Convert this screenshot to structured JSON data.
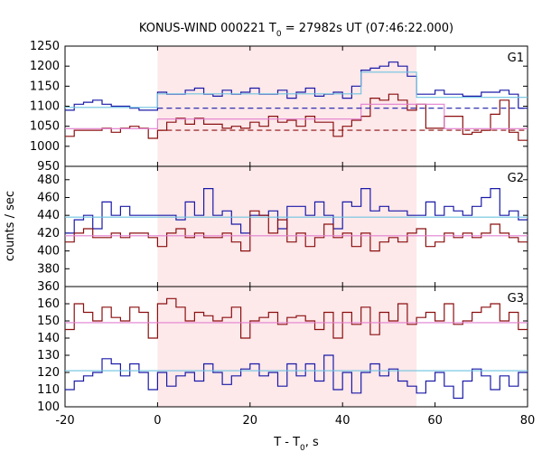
{
  "chart_data": {
    "type": "line",
    "title": "KONUS-WIND 000221 T",
    "title_sub": "0",
    "title_rest": " = 27982s UT (07:46:22.000)",
    "xlabel": "T - T",
    "xlabel_sub": "0",
    "xlabel_rest": ", s",
    "ylabel": "counts / sec",
    "xlim": [
      -20,
      80
    ],
    "x_ticks": [
      -20,
      0,
      20,
      40,
      60,
      80
    ],
    "highlight_interval": [
      0,
      56
    ],
    "colors": {
      "blue": "#1a1aa8",
      "red": "#8b0f0f",
      "cyan": "#6ec4e0",
      "pink": "#e27fd0",
      "shade": "#fde8ea"
    },
    "panels": [
      {
        "name": "G1",
        "ylim": [
          950,
          1250
        ],
        "y_ticks": [
          950,
          1000,
          1050,
          1100,
          1150,
          1200,
          1250
        ],
        "step_x0": -20,
        "step_dx": 2,
        "series": [
          {
            "color": "blue",
            "values": [
              1090,
              1105,
              1110,
              1115,
              1105,
              1100,
              1100,
              1095,
              1090,
              1090,
              1135,
              1130,
              1130,
              1140,
              1145,
              1130,
              1125,
              1140,
              1130,
              1135,
              1145,
              1130,
              1130,
              1140,
              1120,
              1135,
              1145,
              1125,
              1130,
              1135,
              1120,
              1150,
              1190,
              1195,
              1200,
              1210,
              1200,
              1175,
              1130,
              1130,
              1140,
              1130,
              1130,
              1125,
              1125,
              1135,
              1135,
              1140,
              1130,
              1095
            ]
          },
          {
            "color": "red",
            "values": [
              1025,
              1040,
              1040,
              1040,
              1045,
              1035,
              1045,
              1050,
              1045,
              1020,
              1040,
              1060,
              1070,
              1055,
              1070,
              1055,
              1055,
              1045,
              1050,
              1045,
              1060,
              1050,
              1075,
              1060,
              1065,
              1050,
              1075,
              1060,
              1060,
              1025,
              1050,
              1065,
              1075,
              1120,
              1115,
              1130,
              1115,
              1090,
              1105,
              1045,
              1045,
              1075,
              1075,
              1030,
              1035,
              1040,
              1080,
              1115,
              1035,
              1015
            ]
          },
          {
            "color": "cyan",
            "steps": [
              [
                -20,
                0,
                1097
              ],
              [
                0,
                44,
                1131
              ],
              [
                44,
                56,
                1185
              ],
              [
                56,
                80,
                1122
              ]
            ]
          },
          {
            "color": "pink",
            "steps": [
              [
                -20,
                0,
                1044
              ],
              [
                0,
                44,
                1068
              ],
              [
                44,
                62,
                1105
              ],
              [
                62,
                80,
                1044
              ]
            ]
          },
          {
            "color": "blue",
            "dash": true,
            "steps": [
              [
                0,
                80,
                1095
              ]
            ]
          },
          {
            "color": "red",
            "dash": true,
            "steps": [
              [
                0,
                80,
                1040
              ]
            ]
          }
        ]
      },
      {
        "name": "G2",
        "ylim": [
          360,
          495
        ],
        "y_ticks": [
          360,
          380,
          400,
          420,
          440,
          460,
          480
        ],
        "step_x0": -20,
        "step_dx": 2,
        "series": [
          {
            "color": "blue",
            "values": [
              420,
              435,
              440,
              425,
              455,
              440,
              450,
              440,
              440,
              440,
              440,
              440,
              435,
              455,
              440,
              470,
              440,
              445,
              430,
              420,
              440,
              440,
              445,
              425,
              450,
              450,
              440,
              455,
              440,
              425,
              455,
              450,
              470,
              445,
              450,
              445,
              445,
              440,
              440,
              455,
              440,
              450,
              445,
              440,
              450,
              460,
              470,
              440,
              445,
              435
            ]
          },
          {
            "color": "red",
            "values": [
              410,
              420,
              425,
              415,
              415,
              420,
              415,
              420,
              420,
              415,
              405,
              420,
              425,
              415,
              420,
              415,
              415,
              420,
              410,
              400,
              445,
              440,
              420,
              435,
              410,
              420,
              405,
              415,
              430,
              415,
              420,
              405,
              420,
              400,
              410,
              415,
              410,
              420,
              425,
              405,
              410,
              420,
              415,
              420,
              415,
              420,
              430,
              420,
              415,
              410
            ]
          },
          {
            "color": "cyan",
            "steps": [
              [
                -20,
                80,
                438
              ]
            ]
          },
          {
            "color": "pink",
            "steps": [
              [
                -20,
                80,
                417
              ]
            ]
          }
        ]
      },
      {
        "name": "G3",
        "ylim": [
          100,
          170
        ],
        "y_ticks": [
          100,
          110,
          120,
          130,
          140,
          150,
          160
        ],
        "step_x0": -20,
        "step_dx": 2,
        "series": [
          {
            "color": "red",
            "values": [
              145,
              160,
              155,
              150,
              158,
              152,
              150,
              158,
              155,
              140,
              160,
              163,
              158,
              150,
              155,
              153,
              150,
              152,
              158,
              140,
              150,
              152,
              155,
              148,
              152,
              153,
              150,
              145,
              155,
              140,
              155,
              148,
              158,
              142,
              155,
              150,
              160,
              148,
              152,
              155,
              150,
              160,
              148,
              150,
              155,
              158,
              160,
              150,
              155,
              145
            ]
          },
          {
            "color": "blue",
            "values": [
              110,
              115,
              118,
              120,
              128,
              125,
              118,
              125,
              120,
              110,
              120,
              112,
              118,
              120,
              115,
              125,
              120,
              113,
              118,
              122,
              125,
              118,
              120,
              112,
              125,
              118,
              125,
              115,
              130,
              110,
              120,
              108,
              120,
              125,
              118,
              122,
              115,
              112,
              108,
              115,
              120,
              112,
              105,
              115,
              122,
              118,
              110,
              118,
              112,
              120
            ]
          },
          {
            "color": "cyan",
            "steps": [
              [
                -20,
                80,
                121
              ]
            ]
          },
          {
            "color": "pink",
            "steps": [
              [
                -20,
                80,
                149
              ]
            ]
          }
        ]
      }
    ]
  }
}
